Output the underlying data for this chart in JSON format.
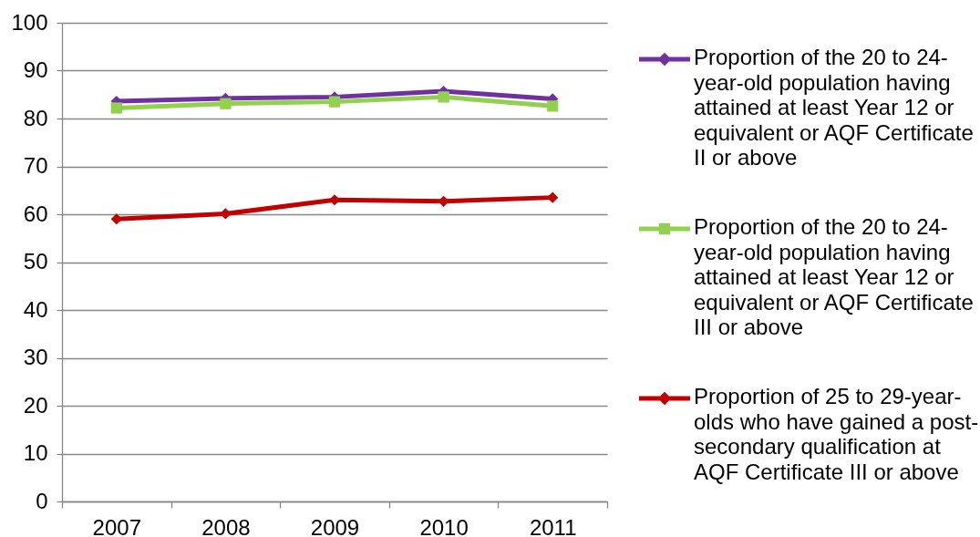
{
  "chart_data": {
    "type": "line",
    "categories": [
      "2007",
      "2008",
      "2009",
      "2010",
      "2011"
    ],
    "ylim": [
      0,
      100
    ],
    "yticks": [
      0,
      10,
      20,
      30,
      40,
      50,
      60,
      70,
      80,
      90,
      100
    ],
    "grid": "y",
    "legend": "right",
    "series": [
      {
        "name": "Proportion of the 20 to 24-year-old population having attained at least Year 12 or equivalent or AQF Certificate II or above",
        "color": "#7030a0",
        "marker": "diamond",
        "values": [
          83.6,
          84.2,
          84.5,
          85.7,
          84.1
        ]
      },
      {
        "name": "Proportion of the 20 to 24-year-old population having attained at least Year 12 or equivalent or AQF Certificate III or above",
        "color": "#92d050",
        "marker": "square",
        "values": [
          82.2,
          83.1,
          83.5,
          84.5,
          82.6
        ]
      },
      {
        "name": "Proportion of 25 to 29-year-olds who have gained a post-secondary qualification at AQF Certificate III or above",
        "color": "#c00000",
        "marker": "diamond",
        "values": [
          59.0,
          60.1,
          63.0,
          62.7,
          63.5
        ]
      }
    ]
  }
}
